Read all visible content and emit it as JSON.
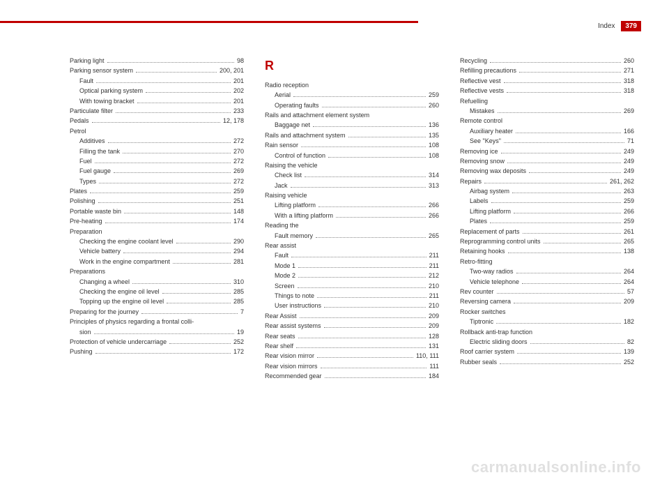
{
  "header": {
    "title": "Index",
    "page": "379"
  },
  "watermark": "carmanualsonline.info",
  "columns": [
    {
      "items": [
        {
          "type": "entry",
          "label": "Parking light",
          "page": "98"
        },
        {
          "type": "entry",
          "label": "Parking sensor system",
          "page": "200, 201"
        },
        {
          "type": "sub",
          "label": "Fault",
          "page": "201"
        },
        {
          "type": "sub",
          "label": "Optical parking system",
          "page": "202"
        },
        {
          "type": "sub",
          "label": "With towing bracket",
          "page": "201"
        },
        {
          "type": "entry",
          "label": "Particulate filter",
          "page": "233"
        },
        {
          "type": "entry",
          "label": "Pedals",
          "page": "12, 178"
        },
        {
          "type": "heading",
          "label": "Petrol"
        },
        {
          "type": "sub",
          "label": "Additives",
          "page": "272"
        },
        {
          "type": "sub",
          "label": "Filling the tank",
          "page": "270"
        },
        {
          "type": "sub",
          "label": "Fuel",
          "page": "272"
        },
        {
          "type": "sub",
          "label": "Fuel gauge",
          "page": "269"
        },
        {
          "type": "sub",
          "label": "Types",
          "page": "272"
        },
        {
          "type": "entry",
          "label": "Plates",
          "page": "259"
        },
        {
          "type": "entry",
          "label": "Polishing",
          "page": "251"
        },
        {
          "type": "entry",
          "label": "Portable waste bin",
          "page": "148"
        },
        {
          "type": "entry",
          "label": "Pre-heating",
          "page": "174"
        },
        {
          "type": "heading",
          "label": "Preparation"
        },
        {
          "type": "sub",
          "label": "Checking the engine coolant level",
          "page": "290"
        },
        {
          "type": "sub",
          "label": "Vehicle battery",
          "page": "294"
        },
        {
          "type": "sub",
          "label": "Work in the engine compartment",
          "page": "281"
        },
        {
          "type": "heading",
          "label": "Preparations"
        },
        {
          "type": "sub",
          "label": "Changing a wheel",
          "page": "310"
        },
        {
          "type": "sub",
          "label": "Checking the engine oil level",
          "page": "285"
        },
        {
          "type": "sub",
          "label": "Topping up the engine oil level",
          "page": "285"
        },
        {
          "type": "entry",
          "label": "Preparing for the journey",
          "page": "7"
        },
        {
          "type": "heading",
          "label": "Principles of physics regarding a frontal colli-"
        },
        {
          "type": "sub",
          "label": "sion",
          "page": "19"
        },
        {
          "type": "entry",
          "label": "Protection of vehicle undercarriage",
          "page": "252"
        },
        {
          "type": "entry",
          "label": "Pushing",
          "page": "172"
        }
      ]
    },
    {
      "letter": "R",
      "items": [
        {
          "type": "heading",
          "label": "Radio reception"
        },
        {
          "type": "sub",
          "label": "Aerial",
          "page": "259"
        },
        {
          "type": "sub",
          "label": "Operating faults",
          "page": "260"
        },
        {
          "type": "heading",
          "label": "Rails and attachment element system"
        },
        {
          "type": "sub",
          "label": "Baggage net",
          "page": "136"
        },
        {
          "type": "entry",
          "label": "Rails and attachment system",
          "page": "135"
        },
        {
          "type": "entry",
          "label": "Rain sensor",
          "page": "108"
        },
        {
          "type": "sub",
          "label": "Control of function",
          "page": "108"
        },
        {
          "type": "heading",
          "label": "Raising the vehicle"
        },
        {
          "type": "sub",
          "label": "Check list",
          "page": "314"
        },
        {
          "type": "sub",
          "label": "Jack",
          "page": "313"
        },
        {
          "type": "heading",
          "label": "Raising vehicle"
        },
        {
          "type": "sub",
          "label": "Lifting platform",
          "page": "266"
        },
        {
          "type": "sub",
          "label": "With a lifting platform",
          "page": "266"
        },
        {
          "type": "heading",
          "label": "Reading the"
        },
        {
          "type": "sub",
          "label": "Fault memory",
          "page": "265"
        },
        {
          "type": "heading",
          "label": "Rear assist"
        },
        {
          "type": "sub",
          "label": "Fault",
          "page": "211"
        },
        {
          "type": "sub",
          "label": "Mode 1",
          "page": "211"
        },
        {
          "type": "sub",
          "label": "Mode 2",
          "page": "212"
        },
        {
          "type": "sub",
          "label": "Screen",
          "page": "210"
        },
        {
          "type": "sub",
          "label": "Things to note",
          "page": "211"
        },
        {
          "type": "sub",
          "label": "User instructions",
          "page": "210"
        },
        {
          "type": "entry",
          "label": "Rear Assist",
          "page": "209"
        },
        {
          "type": "entry",
          "label": "Rear assist systems",
          "page": "209"
        },
        {
          "type": "entry",
          "label": "Rear seats",
          "page": "128"
        },
        {
          "type": "entry",
          "label": "Rear shelf",
          "page": "131"
        },
        {
          "type": "entry",
          "label": "Rear vision mirror",
          "page": "110, 111"
        },
        {
          "type": "entry",
          "label": "Rear vision mirrors",
          "page": "111"
        },
        {
          "type": "entry",
          "label": "Recommended gear",
          "page": "184"
        }
      ]
    },
    {
      "items": [
        {
          "type": "entry",
          "label": "Recycling",
          "page": "260"
        },
        {
          "type": "entry",
          "label": "Refilling precautions",
          "page": "271"
        },
        {
          "type": "entry",
          "label": "Reflective vest",
          "page": "318"
        },
        {
          "type": "entry",
          "label": "Reflective vests",
          "page": "318"
        },
        {
          "type": "heading",
          "label": "Refuelling"
        },
        {
          "type": "sub",
          "label": "Mistakes",
          "page": "269"
        },
        {
          "type": "heading",
          "label": "Remote control"
        },
        {
          "type": "sub",
          "label": "Auxiliary heater",
          "page": "166"
        },
        {
          "type": "sub",
          "label": "See \"Keys\"",
          "page": "71"
        },
        {
          "type": "entry",
          "label": "Removing ice",
          "page": "249"
        },
        {
          "type": "entry",
          "label": "Removing snow",
          "page": "249"
        },
        {
          "type": "entry",
          "label": "Removing wax deposits",
          "page": "249"
        },
        {
          "type": "entry",
          "label": "Repairs",
          "page": "261, 262"
        },
        {
          "type": "sub",
          "label": "Airbag system",
          "page": "263"
        },
        {
          "type": "sub",
          "label": "Labels",
          "page": "259"
        },
        {
          "type": "sub",
          "label": "Lifting platform",
          "page": "266"
        },
        {
          "type": "sub",
          "label": "Plates",
          "page": "259"
        },
        {
          "type": "entry",
          "label": "Replacement of parts",
          "page": "261"
        },
        {
          "type": "entry",
          "label": "Reprogramming control units",
          "page": "265"
        },
        {
          "type": "entry",
          "label": "Retaining hooks",
          "page": "138"
        },
        {
          "type": "heading",
          "label": "Retro-fitting"
        },
        {
          "type": "sub",
          "label": "Two-way radios",
          "page": "264"
        },
        {
          "type": "sub",
          "label": "Vehicle telephone",
          "page": "264"
        },
        {
          "type": "entry",
          "label": "Rev counter",
          "page": "57"
        },
        {
          "type": "entry",
          "label": "Reversing camera",
          "page": "209"
        },
        {
          "type": "heading",
          "label": "Rocker switches"
        },
        {
          "type": "sub",
          "label": "Tiptronic",
          "page": "182"
        },
        {
          "type": "heading",
          "label": "Rollback anti-trap function"
        },
        {
          "type": "sub",
          "label": "Electric sliding doors",
          "page": "82"
        },
        {
          "type": "entry",
          "label": "Roof carrier system",
          "page": "139"
        },
        {
          "type": "entry",
          "label": "Rubber seals",
          "page": "252"
        }
      ]
    }
  ]
}
